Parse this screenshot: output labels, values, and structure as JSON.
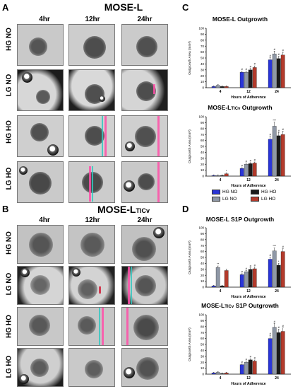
{
  "panels": {
    "A": {
      "letter": "A",
      "title": "MOSE-L",
      "columns": [
        "4hr",
        "12hr",
        "24hr"
      ],
      "rows": [
        "HG NO",
        "LG NO",
        "HG HO",
        "LG HO"
      ]
    },
    "B": {
      "letter": "B",
      "title_main": "MOSE-L",
      "title_sub": "TICv",
      "columns": [
        "4hr",
        "12hr",
        "24hr"
      ],
      "rows": [
        "HG NO",
        "LG NO",
        "HG HO",
        "LG HO"
      ]
    },
    "C": {
      "letter": "C"
    },
    "D": {
      "letter": "D"
    }
  },
  "colors": {
    "HG NO": "#2a35d8",
    "LG NO": "#8f98a6",
    "HG HO": "#1a1a1a",
    "LG HO": "#b33a2b"
  },
  "legend": [
    {
      "label": "HG NO",
      "color": "#2a35d8"
    },
    {
      "label": "HG HO",
      "color": "#1a1a1a"
    },
    {
      "label": "LG NO",
      "color": "#8f98a6"
    },
    {
      "label": "LG HO",
      "color": "#b33a2b"
    }
  ],
  "chart_data": [
    {
      "type": "bar",
      "title": "MOSE-L Outgrowth",
      "xlabel": "Hours of Adherence",
      "ylabel": "Outgrowth Area (mm²)",
      "categories": [
        "4",
        "12",
        "24"
      ],
      "ylim": [
        0,
        100
      ],
      "yticks": [
        "0",
        "10",
        "20",
        "30",
        "40",
        "50",
        "60",
        "70",
        "80",
        "90",
        "100"
      ],
      "series": [
        {
          "name": "HG NO",
          "values": [
            2,
            26,
            47
          ]
        },
        {
          "name": "LG NO",
          "values": [
            4,
            26,
            57
          ]
        },
        {
          "name": "HG HO",
          "values": [
            2,
            30,
            49
          ]
        },
        {
          "name": "LG HO",
          "values": [
            2,
            34,
            55
          ]
        }
      ],
      "annotations": [
        [
          "",
          "",
          "",
          ""
        ],
        [
          "#",
          "#",
          "#",
          "#"
        ],
        [
          "#",
          "#",
          "#",
          "#"
        ]
      ]
    },
    {
      "type": "bar",
      "title_main": "MOSE-L",
      "title_sub": "TICv",
      "title_end": " Outgrowth",
      "xlabel": "Hours of Adherence",
      "ylabel": "Outgrowth Area (mm²)",
      "categories": [
        "4",
        "12",
        "24"
      ],
      "ylim": [
        0,
        100
      ],
      "yticks": [
        "0",
        "10",
        "20",
        "30",
        "40",
        "50",
        "60",
        "70",
        "80",
        "90",
        "100"
      ],
      "series": [
        {
          "name": "HG NO",
          "values": [
            1,
            13,
            62
          ]
        },
        {
          "name": "LG NO",
          "values": [
            1,
            20,
            84
          ]
        },
        {
          "name": "HG HO",
          "values": [
            1,
            21,
            68
          ]
        },
        {
          "name": "LG HO",
          "values": [
            4,
            22,
            70
          ]
        }
      ],
      "annotations": [
        [
          "",
          "",
          "",
          "*"
        ],
        [
          "#",
          "#",
          "#",
          "#"
        ],
        [
          "#",
          "***",
          "#",
          "#"
        ]
      ]
    },
    {
      "type": "bar",
      "title": "MOSE-L S1P Outgrowth",
      "xlabel": "Hours of Adherence",
      "ylabel": "Outgrowth Area (mm²)",
      "categories": [
        "4",
        "12",
        "24"
      ],
      "ylim": [
        0,
        100
      ],
      "yticks": [
        "0",
        "10",
        "20",
        "30",
        "40",
        "50",
        "60",
        "70",
        "80",
        "90",
        "100"
      ],
      "series": [
        {
          "name": "HG NO",
          "values": [
            2,
            21,
            47
          ]
        },
        {
          "name": "LG NO",
          "values": [
            33,
            26,
            61
          ]
        },
        {
          "name": "HG HO",
          "values": [
            2,
            30,
            37
          ]
        },
        {
          "name": "LG HO",
          "values": [
            28,
            31,
            60
          ]
        }
      ],
      "annotations": [
        [
          "",
          "**",
          "",
          ""
        ],
        [
          "#",
          "#",
          "#",
          "#"
        ],
        [
          "#",
          "***",
          "*",
          "#"
        ]
      ]
    },
    {
      "type": "bar",
      "title_main": "MOSE-L",
      "title_sub": "TICv",
      "title_end": " S1P Outgrowth",
      "xlabel": "Hours of Adherence",
      "ylabel": "Outgrowth Area (mm²)",
      "categories": [
        "4",
        "12",
        "24"
      ],
      "ylim": [
        0,
        100
      ],
      "yticks": [
        "0",
        "10",
        "20",
        "30",
        "40",
        "50",
        "60",
        "70",
        "80",
        "90",
        "100"
      ],
      "series": [
        {
          "name": "HG NO",
          "values": [
            2,
            16,
            60
          ]
        },
        {
          "name": "LG NO",
          "values": [
            3,
            20,
            79
          ]
        },
        {
          "name": "HG HO",
          "values": [
            1,
            24,
            70
          ]
        },
        {
          "name": "LG HO",
          "values": [
            2,
            22,
            72
          ]
        }
      ],
      "annotations": [
        [
          "",
          "",
          "",
          ""
        ],
        [
          "#",
          "#",
          "#",
          "#"
        ],
        [
          "#",
          "#",
          "#",
          "#"
        ]
      ]
    }
  ]
}
